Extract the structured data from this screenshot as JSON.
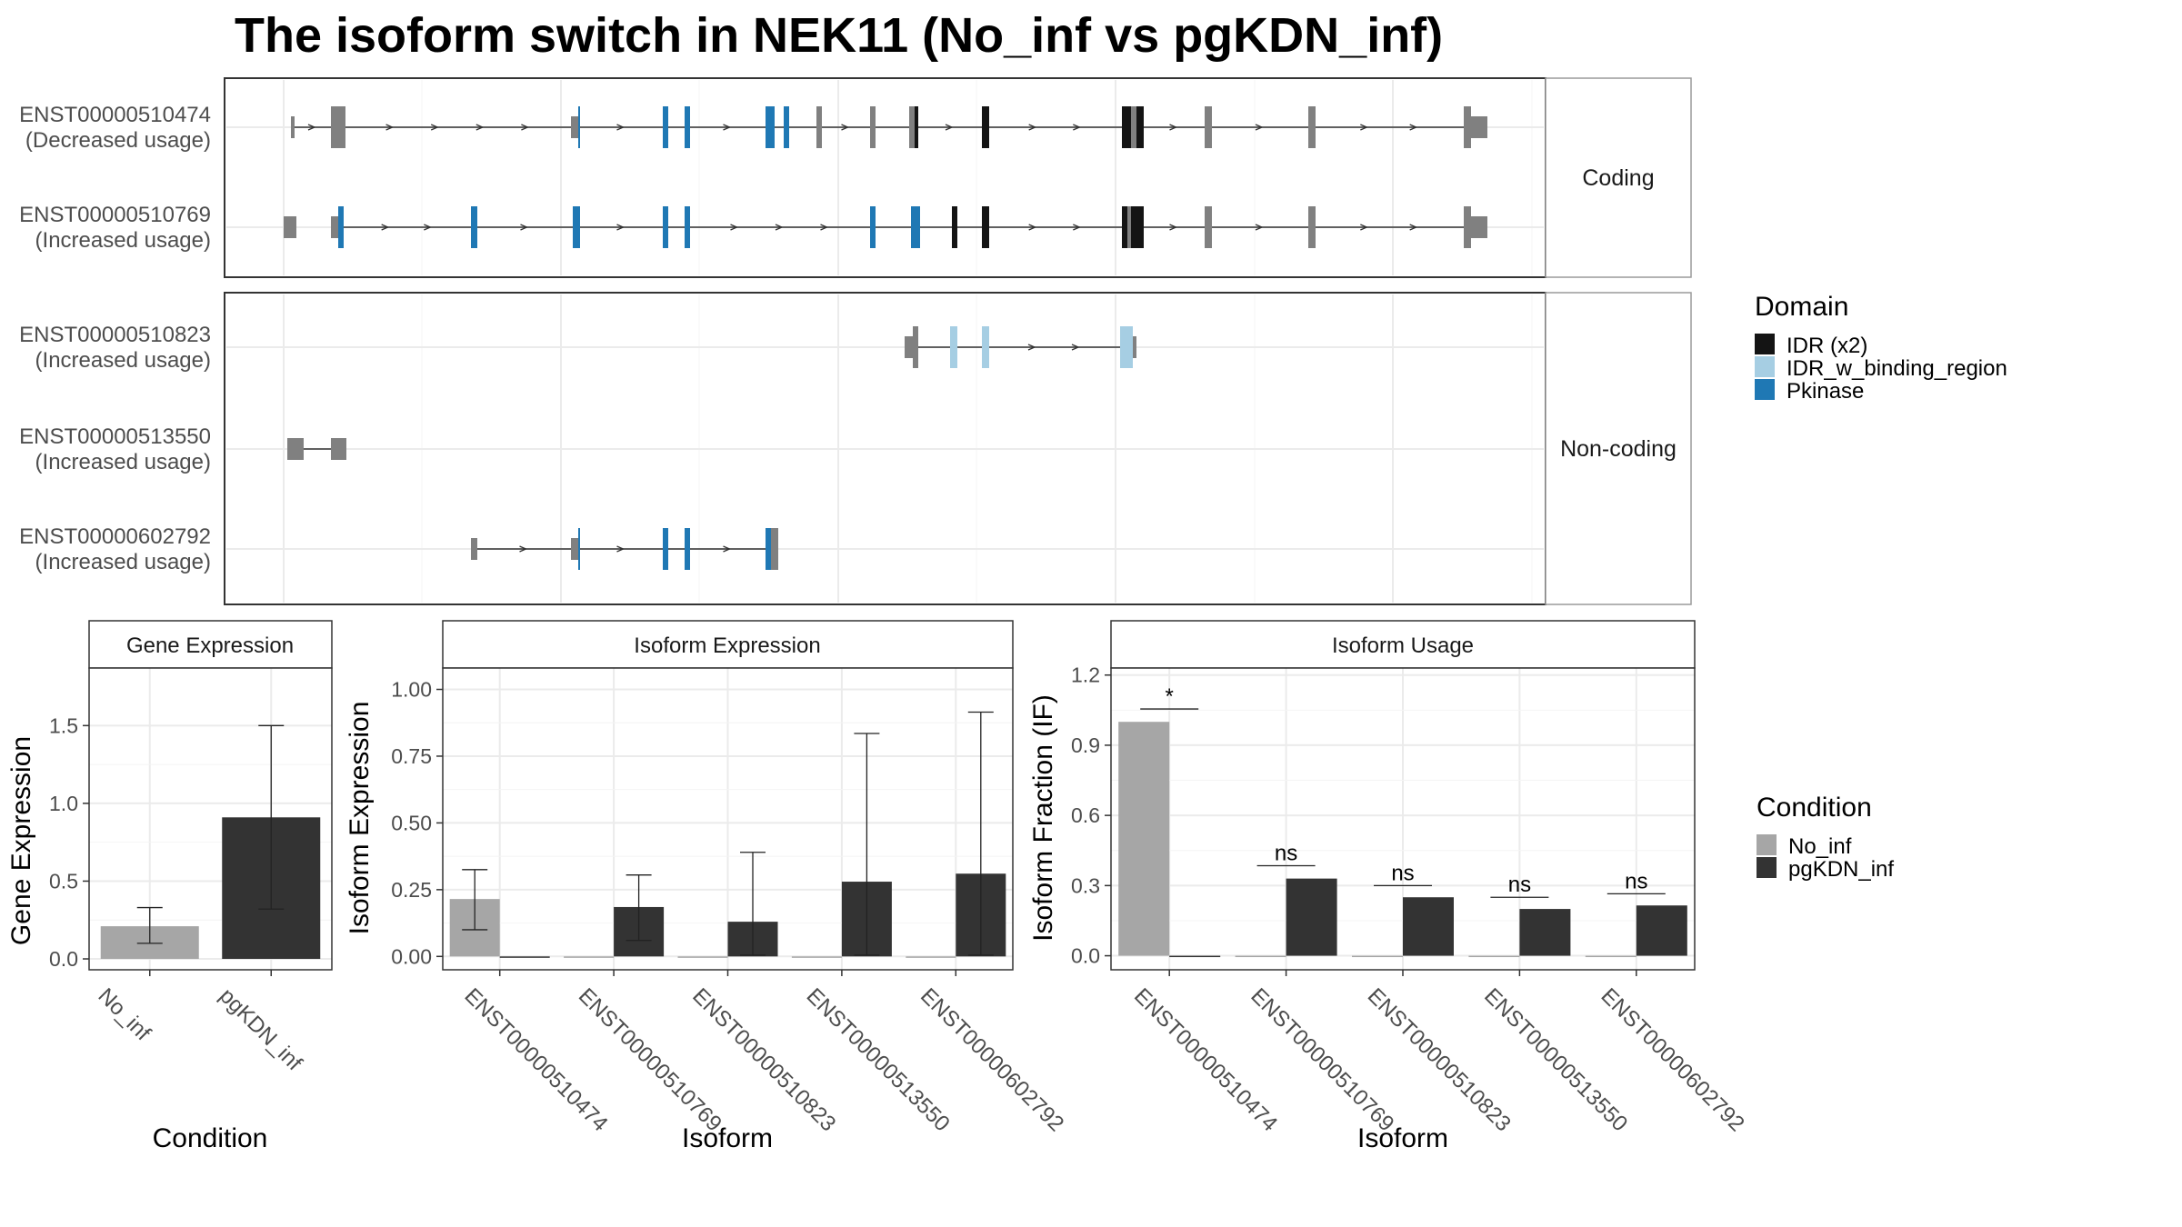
{
  "title": "The isoform switch in NEK11 (No_inf vs pgKDN_inf)",
  "colors": {
    "exon": "#808080",
    "idr": "#141414",
    "idr_binding": "#a6cee3",
    "pkinase": "#1f78b4",
    "no_inf": "#a6a6a6",
    "pgkdn_inf": "#333333",
    "grid": "#ebebeb"
  },
  "structure": {
    "coding_label": "Coding",
    "noncoding_label": "Non-coding",
    "coding": [
      {
        "id": "ENST00000510474",
        "usage": "(Decreased usage)",
        "intron": [
          320,
          1615
        ],
        "exons": [
          {
            "s": 320,
            "e": 324,
            "c": "exon",
            "h": "thin"
          },
          {
            "s": 364,
            "e": 380,
            "c": "exon",
            "h": "thick"
          },
          {
            "s": 628,
            "e": 636,
            "c": "exon",
            "h": "thin"
          },
          {
            "s": 636,
            "e": 638,
            "c": "pkinase",
            "h": "thick"
          },
          {
            "s": 729,
            "e": 735,
            "c": "pkinase",
            "h": "thick"
          },
          {
            "s": 753,
            "e": 759,
            "c": "pkinase",
            "h": "thick"
          },
          {
            "s": 842,
            "e": 852,
            "c": "pkinase",
            "h": "thick"
          },
          {
            "s": 862,
            "e": 868,
            "c": "pkinase",
            "h": "thick"
          },
          {
            "s": 898,
            "e": 904,
            "c": "exon",
            "h": "thick"
          },
          {
            "s": 957,
            "e": 963,
            "c": "exon",
            "h": "thick"
          },
          {
            "s": 1000,
            "e": 1006,
            "c": "exon",
            "h": "thick"
          },
          {
            "s": 1006,
            "e": 1010,
            "c": "idr",
            "h": "thick"
          },
          {
            "s": 1080,
            "e": 1088,
            "c": "idr",
            "h": "thick"
          },
          {
            "s": 1234,
            "e": 1244,
            "c": "idr",
            "h": "thick"
          },
          {
            "s": 1244,
            "e": 1250,
            "c": "exon",
            "h": "thick"
          },
          {
            "s": 1250,
            "e": 1258,
            "c": "idr",
            "h": "thick"
          },
          {
            "s": 1325,
            "e": 1333,
            "c": "exon",
            "h": "thick"
          },
          {
            "s": 1439,
            "e": 1447,
            "c": "exon",
            "h": "thick"
          },
          {
            "s": 1610,
            "e": 1618,
            "c": "exon",
            "h": "thick"
          },
          {
            "s": 1618,
            "e": 1636,
            "c": "exon",
            "h": "thin"
          }
        ]
      },
      {
        "id": "ENST00000510769",
        "usage": "(Increased usage)",
        "intron": [
          374,
          1615
        ],
        "exons": [
          {
            "s": 312,
            "e": 326,
            "c": "exon",
            "h": "thin"
          },
          {
            "s": 364,
            "e": 372,
            "c": "exon",
            "h": "thin"
          },
          {
            "s": 372,
            "e": 378,
            "c": "pkinase",
            "h": "thick"
          },
          {
            "s": 518,
            "e": 525,
            "c": "pkinase",
            "h": "thick"
          },
          {
            "s": 630,
            "e": 638,
            "c": "pkinase",
            "h": "thick"
          },
          {
            "s": 729,
            "e": 735,
            "c": "pkinase",
            "h": "thick"
          },
          {
            "s": 753,
            "e": 759,
            "c": "pkinase",
            "h": "thick"
          },
          {
            "s": 957,
            "e": 963,
            "c": "pkinase",
            "h": "thick"
          },
          {
            "s": 1002,
            "e": 1012,
            "c": "pkinase",
            "h": "thick"
          },
          {
            "s": 1047,
            "e": 1053,
            "c": "idr",
            "h": "thick"
          },
          {
            "s": 1080,
            "e": 1088,
            "c": "idr",
            "h": "thick"
          },
          {
            "s": 1234,
            "e": 1240,
            "c": "idr",
            "h": "thick"
          },
          {
            "s": 1240,
            "e": 1244,
            "c": "exon",
            "h": "thick"
          },
          {
            "s": 1244,
            "e": 1258,
            "c": "idr",
            "h": "thick"
          },
          {
            "s": 1325,
            "e": 1333,
            "c": "exon",
            "h": "thick"
          },
          {
            "s": 1439,
            "e": 1447,
            "c": "exon",
            "h": "thick"
          },
          {
            "s": 1610,
            "e": 1618,
            "c": "exon",
            "h": "thick"
          },
          {
            "s": 1618,
            "e": 1636,
            "c": "exon",
            "h": "thin"
          }
        ]
      }
    ],
    "noncoding": [
      {
        "id": "ENST00000510823",
        "usage": "(Increased usage)",
        "intron": [
          1008,
          1232
        ],
        "exons": [
          {
            "s": 995,
            "e": 1004,
            "c": "exon",
            "h": "thin"
          },
          {
            "s": 1004,
            "e": 1010,
            "c": "exon",
            "h": "thick"
          },
          {
            "s": 1045,
            "e": 1053,
            "c": "idr_binding",
            "h": "thick"
          },
          {
            "s": 1080,
            "e": 1088,
            "c": "idr_binding",
            "h": "thick"
          },
          {
            "s": 1232,
            "e": 1246,
            "c": "idr_binding",
            "h": "thick"
          },
          {
            "s": 1246,
            "e": 1250,
            "c": "exon",
            "h": "thin"
          }
        ]
      },
      {
        "id": "ENST00000513550",
        "usage": "(Increased usage)",
        "intron": [
          330,
          366
        ],
        "exons": [
          {
            "s": 316,
            "e": 334,
            "c": "exon",
            "h": "thin"
          },
          {
            "s": 364,
            "e": 381,
            "c": "exon",
            "h": "thin"
          }
        ]
      },
      {
        "id": "ENST00000602792",
        "usage": "(Increased usage)",
        "intron": [
          520,
          846
        ],
        "exons": [
          {
            "s": 518,
            "e": 525,
            "c": "exon",
            "h": "thin"
          },
          {
            "s": 628,
            "e": 636,
            "c": "exon",
            "h": "thin"
          },
          {
            "s": 636,
            "e": 638,
            "c": "pkinase",
            "h": "thick"
          },
          {
            "s": 729,
            "e": 735,
            "c": "pkinase",
            "h": "thick"
          },
          {
            "s": 753,
            "e": 759,
            "c": "pkinase",
            "h": "thick"
          },
          {
            "s": 842,
            "e": 848,
            "c": "pkinase",
            "h": "thick"
          },
          {
            "s": 848,
            "e": 856,
            "c": "exon",
            "h": "thick"
          }
        ]
      }
    ]
  },
  "legends": {
    "domain": {
      "title": "Domain",
      "items": [
        {
          "label": "IDR (x2)",
          "color": "#141414"
        },
        {
          "label": "IDR_w_binding_region",
          "color": "#a6cee3"
        },
        {
          "label": "Pkinase",
          "color": "#1f78b4"
        }
      ]
    },
    "condition": {
      "title": "Condition",
      "items": [
        {
          "label": "No_inf",
          "color": "#a6a6a6"
        },
        {
          "label": "pgKDN_inf",
          "color": "#333333"
        }
      ]
    }
  },
  "chart_data": [
    {
      "type": "bar",
      "title": "Gene Expression",
      "xlabel": "Condition",
      "ylabel": "Gene Expression",
      "categories": [
        "No_inf",
        "pgKDN_inf"
      ],
      "values": [
        0.21,
        0.91
      ],
      "error_low": [
        0.1,
        0.32
      ],
      "error_high": [
        0.33,
        1.5
      ],
      "ylim": [
        -0.07,
        1.87
      ],
      "yticks": [
        "0.0",
        "0.5",
        "1.0",
        "1.5"
      ]
    },
    {
      "type": "bar",
      "title": "Isoform Expression",
      "xlabel": "Isoform",
      "ylabel": "Isoform Expression",
      "categories": [
        "ENST00000510474",
        "ENST00000510769",
        "ENST00000510823",
        "ENST00000513550",
        "ENST00000602792"
      ],
      "series": [
        {
          "name": "No_inf",
          "values": [
            0.215,
            0.0,
            0.0,
            0.0,
            0.0
          ],
          "error_low": [
            0.1,
            null,
            null,
            null,
            null
          ],
          "error_high": [
            0.325,
            null,
            null,
            null,
            null
          ]
        },
        {
          "name": "pgKDN_inf",
          "values": [
            0.0,
            0.185,
            0.13,
            0.28,
            0.31
          ],
          "error_low": [
            null,
            0.06,
            0.005,
            0.005,
            0.005
          ],
          "error_high": [
            null,
            0.305,
            0.39,
            0.835,
            0.915
          ]
        }
      ],
      "ylim": [
        -0.05,
        1.08
      ],
      "yticks": [
        "0.00",
        "0.25",
        "0.50",
        "0.75",
        "1.00"
      ]
    },
    {
      "type": "bar",
      "title": "Isoform Usage",
      "xlabel": "Isoform",
      "ylabel": "Isoform Fraction (IF)",
      "categories": [
        "ENST00000510474",
        "ENST00000510769",
        "ENST00000510823",
        "ENST00000513550",
        "ENST00000602792"
      ],
      "series": [
        {
          "name": "No_inf",
          "values": [
            1.0,
            0.0,
            0.0,
            0.0,
            0.0
          ]
        },
        {
          "name": "pgKDN_inf",
          "values": [
            0.0,
            0.33,
            0.25,
            0.2,
            0.215
          ]
        }
      ],
      "significance": [
        "*",
        "ns",
        "ns",
        "ns",
        "ns"
      ],
      "significance_level": [
        1.055,
        0.385,
        0.3,
        0.25,
        0.265
      ],
      "ylim": [
        -0.06,
        1.23
      ],
      "yticks": [
        "0.0",
        "0.3",
        "0.6",
        "0.9",
        "1.2"
      ]
    }
  ]
}
